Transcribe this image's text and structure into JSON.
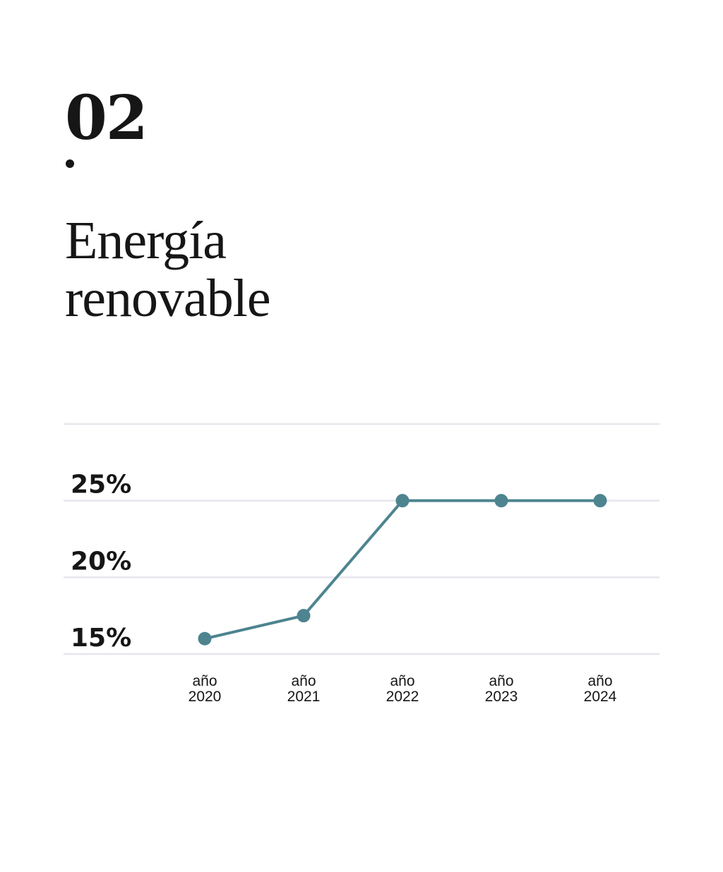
{
  "header": {
    "section_number": "02",
    "title_line1": "Energía",
    "title_line2": "renovable"
  },
  "chart_data": {
    "type": "line",
    "title": "Energía renovable",
    "categories": [
      [
        "año",
        "2020"
      ],
      [
        "año",
        "2021"
      ],
      [
        "año",
        "2022"
      ],
      [
        "año",
        "2023"
      ],
      [
        "año",
        "2024"
      ]
    ],
    "series": [
      {
        "values": [
          16.0,
          17.5,
          25.0,
          25.0,
          25.0
        ]
      }
    ],
    "y_ticks": [
      {
        "value": 15,
        "label": "15%"
      },
      {
        "value": 20,
        "label": "20%"
      },
      {
        "value": 25,
        "label": "25%"
      }
    ],
    "ylim": [
      15,
      30
    ],
    "grid": true,
    "legend": "none",
    "colors": {
      "line": "#4d8490",
      "grid": "#e6e6ec",
      "text": "#161616"
    }
  }
}
